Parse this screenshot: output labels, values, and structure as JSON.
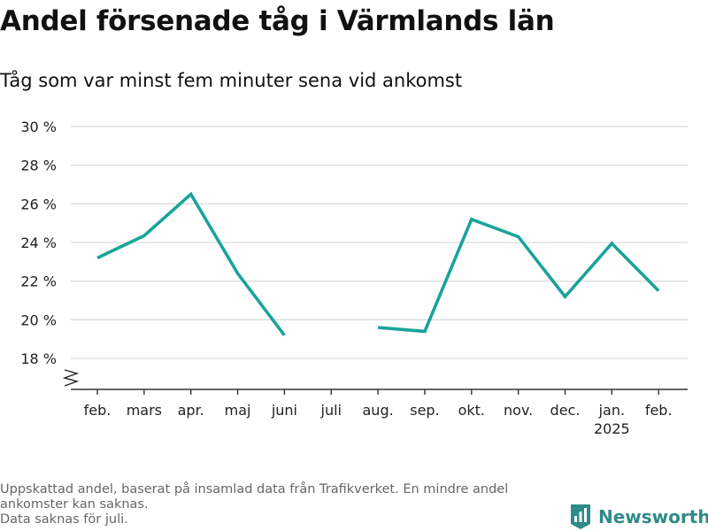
{
  "chart_data": {
    "type": "line",
    "title": "Andel försenade tåg i Värmlands län",
    "subtitle": "Tåg som var minst fem minuter sena vid ankomst",
    "categories": [
      "feb.",
      "mars",
      "apr.",
      "maj",
      "juni",
      "juli",
      "aug.",
      "sep.",
      "okt.",
      "nov.",
      "dec.",
      "jan.",
      "feb."
    ],
    "year_label": {
      "category_index": 11,
      "text": "2025"
    },
    "series": [
      {
        "values": [
          23.2,
          24.35,
          26.5,
          22.4,
          19.2,
          null,
          19.6,
          19.4,
          25.2,
          24.3,
          21.2,
          23.95,
          21.5
        ]
      }
    ],
    "yticks": [
      18,
      20,
      22,
      24,
      26,
      28,
      30
    ],
    "ytick_suffix": " %",
    "ylim": [
      17.0,
      30.5
    ],
    "axis_break": true,
    "grid": true,
    "line_color": "#1aa39a"
  },
  "footnotes": [
    "Uppskattad andel, baserat på insamlad data från Trafikverket. En mindre andel ankomster kan saknas.",
    "Data saknas för juli."
  ],
  "brand": {
    "name": "Newsworthy",
    "color": "#2e8b89",
    "icon": "newsworthy-logo-icon"
  }
}
